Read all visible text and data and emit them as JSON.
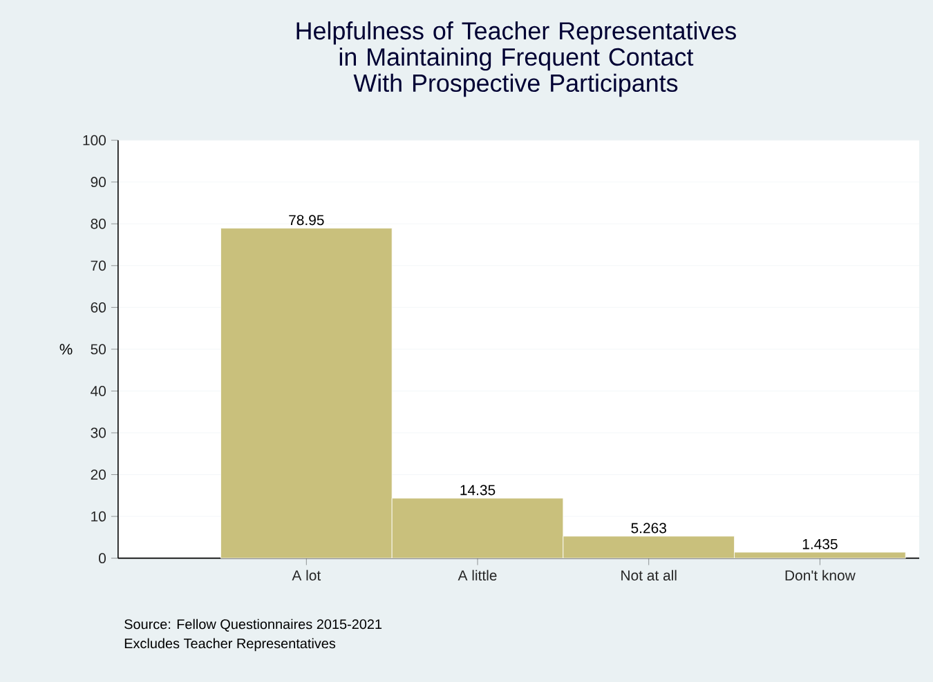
{
  "chart_data": {
    "type": "bar",
    "title": "Helpfulness of Teacher Representatives in Maintaining Frequent Contact With Prospective Participants",
    "ylabel": "%",
    "categories": [
      "A lot",
      "A little",
      "Not at all",
      "Don't know"
    ],
    "values": [
      78.95,
      14.35,
      5.263,
      1.435
    ],
    "value_labels": [
      "78.95",
      "14.35",
      "5.263",
      "1.435"
    ],
    "color": "#c9c07c",
    "ylim": [
      0,
      100
    ],
    "yticks": [
      0,
      10,
      20,
      30,
      40,
      50,
      60,
      70,
      80,
      90,
      100
    ],
    "grid": "y",
    "annotations": [
      "Source: Fellow Questionnaires 2015-2021",
      "Excludes Teacher Representatives"
    ]
  }
}
